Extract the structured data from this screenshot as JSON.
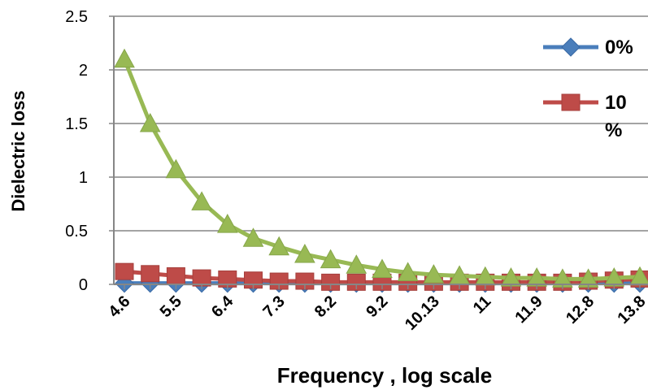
{
  "chart_data": {
    "type": "line",
    "xlabel": "Frequency , log scale",
    "ylabel": "Dielectric loss",
    "ylim": [
      0,
      2.5
    ],
    "yticks": [
      "0",
      "0.5",
      "1",
      "1.5",
      "2",
      "2.5"
    ],
    "categories": [
      "4.6",
      "",
      "5.5",
      "",
      "6.4",
      "",
      "7.3",
      "",
      "8.2",
      "",
      "9.2",
      "",
      "10.13",
      "",
      "11",
      "",
      "11.9",
      "",
      "12.8",
      "",
      "13.8"
    ],
    "grid": true,
    "legend_position": "right",
    "series": [
      {
        "name": "0%",
        "color": "#4a7ebb",
        "marker": "diamond",
        "values": [
          0.01,
          0.01,
          0.01,
          0.01,
          0.01,
          0.01,
          0.01,
          0.01,
          0.01,
          0.01,
          0.01,
          0.01,
          0.01,
          0.01,
          0.01,
          0.01,
          0.01,
          0.01,
          0.01,
          0.01,
          0.01
        ]
      },
      {
        "name": "10 %",
        "color": "#be4b48",
        "marker": "square",
        "values": [
          0.12,
          0.1,
          0.08,
          0.06,
          0.05,
          0.04,
          0.03,
          0.03,
          0.02,
          0.02,
          0.02,
          0.02,
          0.02,
          0.02,
          0.02,
          0.02,
          0.02,
          0.02,
          0.03,
          0.04,
          0.05
        ]
      },
      {
        "color": "#98b954",
        "marker": "triangle",
        "values": [
          2.1,
          1.5,
          1.07,
          0.77,
          0.56,
          0.43,
          0.35,
          0.28,
          0.23,
          0.18,
          0.14,
          0.11,
          0.09,
          0.08,
          0.07,
          0.06,
          0.06,
          0.05,
          0.05,
          0.06,
          0.07
        ]
      }
    ]
  }
}
